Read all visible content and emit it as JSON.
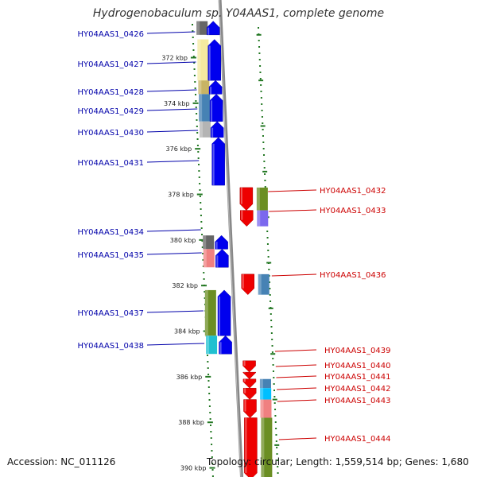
{
  "title": "Hydrogenobaculum sp. Y04AAS1, complete genome",
  "footer": {
    "accession_label": "Accession:",
    "accession": "NC_011126",
    "topology_label": "Topology:",
    "topology": "circular",
    "length_label": "Length:",
    "length": "1,559,514 bp",
    "genes_label": "Genes:",
    "genes": "1,680"
  },
  "colors": {
    "forward_label": "#0000aa",
    "reverse_label": "#cc0000",
    "forward_arrow": "#0000ee",
    "reverse_arrow": "#ee0000",
    "backbone": "#888888",
    "ticks": "#227722"
  },
  "ruler": [
    {
      "label": "372 kbp",
      "kbp": 372
    },
    {
      "label": "374 kbp",
      "kbp": 374
    },
    {
      "label": "376 kbp",
      "kbp": 376
    },
    {
      "label": "378 kbp",
      "kbp": 378
    },
    {
      "label": "380 kbp",
      "kbp": 380
    },
    {
      "label": "382 kbp",
      "kbp": 382
    },
    {
      "label": "384 kbp",
      "kbp": 384
    },
    {
      "label": "386 kbp",
      "kbp": 386
    },
    {
      "label": "388 kbp",
      "kbp": 388
    },
    {
      "label": "390 kbp",
      "kbp": 390
    }
  ],
  "genes_list": [
    {
      "id": "HY04AAS1_0426",
      "strand": "+",
      "start_kbp": 370.4,
      "end_kbp": 371.0,
      "cog_color": "#666666"
    },
    {
      "id": "HY04AAS1_0427",
      "strand": "+",
      "start_kbp": 371.2,
      "end_kbp": 373.0,
      "cog_color": "#f5eaa0"
    },
    {
      "id": "HY04AAS1_0428",
      "strand": "+",
      "start_kbp": 373.0,
      "end_kbp": 373.6,
      "cog_color": "#c8b464"
    },
    {
      "id": "HY04AAS1_0429",
      "strand": "+",
      "start_kbp": 373.6,
      "end_kbp": 374.8,
      "cog_color": "#4682b4"
    },
    {
      "id": "HY04AAS1_0430",
      "strand": "+",
      "start_kbp": 374.8,
      "end_kbp": 375.5,
      "cog_color": "#b4b4b4"
    },
    {
      "id": "HY04AAS1_0431",
      "strand": "+",
      "start_kbp": 375.5,
      "end_kbp": 377.6,
      "cog_color": ""
    },
    {
      "id": "HY04AAS1_0432",
      "strand": "-",
      "start_kbp": 377.7,
      "end_kbp": 378.7,
      "cog_color": "#6b8e23"
    },
    {
      "id": "HY04AAS1_0433",
      "strand": "-",
      "start_kbp": 378.7,
      "end_kbp": 379.4,
      "cog_color": "#7b68ee"
    },
    {
      "id": "HY04AAS1_0434",
      "strand": "+",
      "start_kbp": 379.8,
      "end_kbp": 380.4,
      "cog_color": "#666666"
    },
    {
      "id": "HY04AAS1_0435",
      "strand": "+",
      "start_kbp": 380.4,
      "end_kbp": 381.2,
      "cog_color": "#f08080"
    },
    {
      "id": "HY04AAS1_0436",
      "strand": "-",
      "start_kbp": 381.5,
      "end_kbp": 382.4,
      "cog_color": "#4682b4"
    },
    {
      "id": "HY04AAS1_0437",
      "strand": "+",
      "start_kbp": 382.2,
      "end_kbp": 384.2,
      "cog_color": "#6b8e23"
    },
    {
      "id": "HY04AAS1_0438",
      "strand": "+",
      "start_kbp": 384.2,
      "end_kbp": 385.0,
      "cog_color": "#20c0d0"
    },
    {
      "id": "HY04AAS1_0439",
      "strand": "-",
      "start_kbp": 385.3,
      "end_kbp": 385.8,
      "cog_color": ""
    },
    {
      "id": "HY04AAS1_0440",
      "strand": "-",
      "start_kbp": 385.8,
      "end_kbp": 386.1,
      "cog_color": ""
    },
    {
      "id": "HY04AAS1_0441",
      "strand": "-",
      "start_kbp": 386.1,
      "end_kbp": 386.5,
      "cog_color": "#4682b4"
    },
    {
      "id": "HY04AAS1_0442",
      "strand": "-",
      "start_kbp": 386.5,
      "end_kbp": 387.0,
      "cog_color": "#00bfff"
    },
    {
      "id": "HY04AAS1_0443",
      "strand": "-",
      "start_kbp": 387.0,
      "end_kbp": 387.8,
      "cog_color": "#f08080"
    },
    {
      "id": "HY04AAS1_0444",
      "strand": "-",
      "start_kbp": 387.8,
      "end_kbp": 390.5,
      "cog_color": "#6b8e23"
    }
  ]
}
